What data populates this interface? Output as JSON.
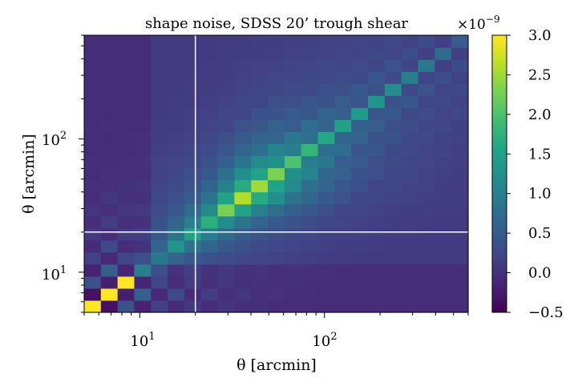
{
  "chart_data": {
    "type": "heatmap",
    "title": "shape noise, SDSS 20’ trough shear",
    "xlabel": "θ [arcmin]",
    "ylabel": "θ [arcmin]",
    "x_scale": "log",
    "y_scale": "log",
    "xlim": [
      5,
      600
    ],
    "ylim": [
      5,
      600
    ],
    "x_major_ticks": [
      {
        "value": 10,
        "base": "10",
        "exp": "1"
      },
      {
        "value": 100,
        "base": "10",
        "exp": "2"
      }
    ],
    "y_major_ticks": [
      {
        "value": 10,
        "base": "10",
        "exp": "1"
      },
      {
        "value": 100,
        "base": "10",
        "exp": "2"
      }
    ],
    "reference_lines": {
      "x": 20,
      "y": 20,
      "color": "#ffffff"
    },
    "colorbar": {
      "colormap": "viridis",
      "vmin": -0.5,
      "vmax": 3.0,
      "ticks": [
        "3.0",
        "2.5",
        "2.0",
        "1.5",
        "1.0",
        "0.5",
        "0.0",
        "−0.5"
      ],
      "tick_values": [
        3.0,
        2.5,
        2.0,
        1.5,
        1.0,
        0.5,
        0.0,
        -0.5
      ],
      "multiplier_base": "×10",
      "multiplier_exp": "−9"
    },
    "grid": {
      "n": 23,
      "cell_values_description": "symmetric covariance in units of 1e-9; diagonal rises to ~2.6 near 20-30 arcmin then falls; alternating checkerboard at small scales"
    },
    "diagonal_values": [
      3.0,
      3.0,
      3.0,
      1.0,
      0.9,
      1.3,
      1.5,
      1.7,
      2.3,
      2.6,
      2.5,
      2.3,
      2.0,
      1.8,
      1.6,
      1.5,
      1.4,
      1.3,
      1.2,
      1.0,
      0.9,
      0.7,
      0.5
    ],
    "offdiag_same_parity_values": [
      0.8,
      1.2,
      0.5,
      0.0,
      0.7,
      1.0,
      1.2,
      1.5,
      1.9,
      2.3,
      2.2,
      2.0,
      1.6,
      1.3,
      1.0,
      0.8,
      0.7,
      0.6,
      0.5,
      0.4,
      0.3,
      0.2
    ],
    "offdiag_other_parity_values": [
      -0.5,
      -0.3,
      -0.2,
      0.5,
      0.7,
      1.0,
      1.2,
      1.5,
      2.0,
      2.2,
      2.0,
      1.6,
      1.2,
      0.9,
      0.7,
      0.6,
      0.4,
      0.3,
      0.2,
      0.1,
      0.0,
      0.0
    ]
  }
}
